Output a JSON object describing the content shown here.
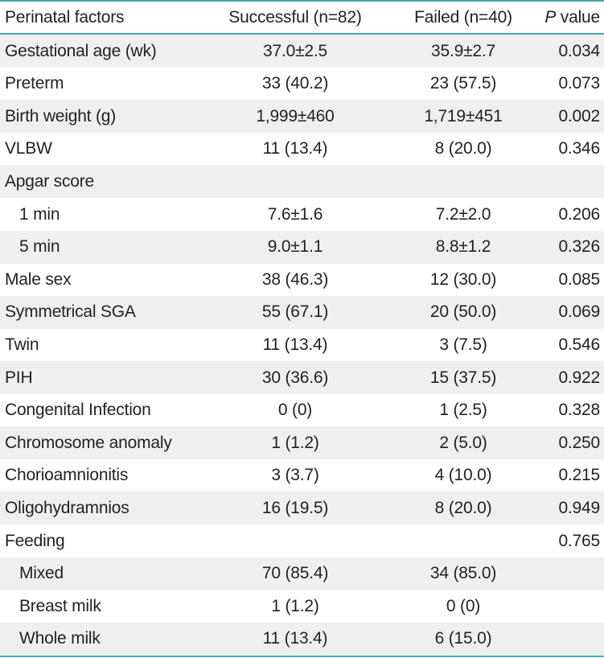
{
  "table": {
    "headers": {
      "factor": "Perinatal factors",
      "successful": "Successful (n=82)",
      "failed": "Failed (n=40)",
      "p_italic": "P",
      "p_rest": " value"
    },
    "rows": [
      {
        "factor": "Gestational age (wk)",
        "successful": "37.0±2.5",
        "failed": "35.9±2.7",
        "p": "0.034"
      },
      {
        "factor": "Preterm",
        "successful": "33 (40.2)",
        "failed": "23 (57.5)",
        "p": "0.073"
      },
      {
        "factor": "Birth weight (g)",
        "successful": "1,999±460",
        "failed": "1,719±451",
        "p": "0.002"
      },
      {
        "factor": "VLBW",
        "successful": "11 (13.4)",
        "failed": "8 (20.0)",
        "p": "0.346"
      },
      {
        "factor": "Apgar score",
        "successful": "",
        "failed": "",
        "p": ""
      },
      {
        "factor": "1 min",
        "successful": "7.6±1.6",
        "failed": "7.2±2.0",
        "p": "0.206"
      },
      {
        "factor": "5 min",
        "successful": "9.0±1.1",
        "failed": "8.8±1.2",
        "p": "0.326"
      },
      {
        "factor": "Male sex",
        "successful": "38 (46.3)",
        "failed": "12 (30.0)",
        "p": "0.085"
      },
      {
        "factor": "Symmetrical SGA",
        "successful": "55 (67.1)",
        "failed": "20 (50.0)",
        "p": "0.069"
      },
      {
        "factor": "Twin",
        "successful": "11 (13.4)",
        "failed": "3 (7.5)",
        "p": "0.546"
      },
      {
        "factor": "PIH",
        "successful": "30 (36.6)",
        "failed": "15 (37.5)",
        "p": "0.922"
      },
      {
        "factor": "Congenital Infection",
        "successful": "0 (0)",
        "failed": "1 (2.5)",
        "p": "0.328"
      },
      {
        "factor": "Chromosome anomaly",
        "successful": "1 (1.2)",
        "failed": "2 (5.0)",
        "p": "0.250"
      },
      {
        "factor": "Chorioamnionitis",
        "successful": "3 (3.7)",
        "failed": "4 (10.0)",
        "p": "0.215"
      },
      {
        "factor": "Oligohydramnios",
        "successful": "16 (19.5)",
        "failed": "8 (20.0)",
        "p": "0.949"
      },
      {
        "factor": "Feeding",
        "successful": "",
        "failed": "",
        "p": "0.765"
      },
      {
        "factor": "Mixed",
        "successful": "70 (85.4)",
        "failed": "34 (85.0)",
        "p": ""
      },
      {
        "factor": "Breast milk",
        "successful": "1 (1.2)",
        "failed": "0 (0)",
        "p": ""
      },
      {
        "factor": "Whole milk",
        "successful": "11 (13.4)",
        "failed": "6 (15.0)",
        "p": ""
      }
    ]
  },
  "colors": {
    "rule": "#4ba6b4",
    "shade": "#eef0f0",
    "text": "#222222"
  }
}
